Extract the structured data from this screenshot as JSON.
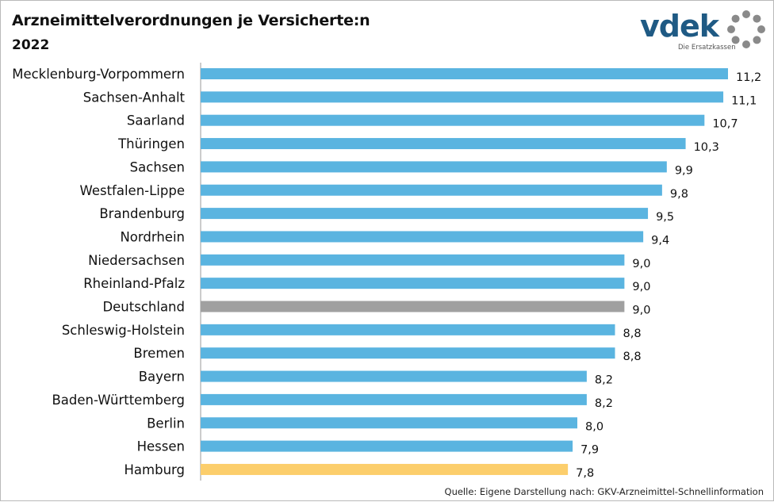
{
  "header": {
    "title": "Arzneimittelverordnungen je Versicherte:n",
    "subtitle": "2022"
  },
  "logo": {
    "word": "vdek",
    "tagline": "Die Ersatzkassen",
    "color": "#1f5a84"
  },
  "footer": {
    "source": "Quelle: Eigene Darstellung nach: GKV-Arzneimittel-Schnellinformation"
  },
  "colors": {
    "default": "#5ab4e0",
    "national": "#a0a0a0",
    "highlight": "#fcce6c",
    "axis": "#999999"
  },
  "chart_data": {
    "type": "bar",
    "orientation": "horizontal",
    "title": "Arzneimittelverordnungen je Versicherte:n",
    "subtitle": "2022",
    "xlim": [
      0,
      11.2
    ],
    "grid": false,
    "categories": [
      "Mecklenburg-Vorpommern",
      "Sachsen-Anhalt",
      "Saarland",
      "Thüringen",
      "Sachsen",
      "Westfalen-Lippe",
      "Brandenburg",
      "Nordrhein",
      "Niedersachsen",
      "Rheinland-Pfalz",
      "Deutschland",
      "Schleswig-Holstein",
      "Bremen",
      "Bayern",
      "Baden-Württemberg",
      "Berlin",
      "Hessen",
      "Hamburg"
    ],
    "values": [
      11.2,
      11.1,
      10.7,
      10.3,
      9.9,
      9.8,
      9.5,
      9.4,
      9.0,
      9.0,
      9.0,
      8.8,
      8.8,
      8.2,
      8.2,
      8.0,
      7.9,
      7.8
    ],
    "value_labels": [
      "11,2",
      "11,1",
      "10,7",
      "10,3",
      "9,9",
      "9,8",
      "9,5",
      "9,4",
      "9,0",
      "9,0",
      "9,0",
      "8,8",
      "8,8",
      "8,2",
      "8,2",
      "8,0",
      "7,9",
      "7,8"
    ],
    "bar_colors": [
      "default",
      "default",
      "default",
      "default",
      "default",
      "default",
      "default",
      "default",
      "default",
      "default",
      "national",
      "default",
      "default",
      "default",
      "default",
      "default",
      "default",
      "highlight"
    ]
  }
}
